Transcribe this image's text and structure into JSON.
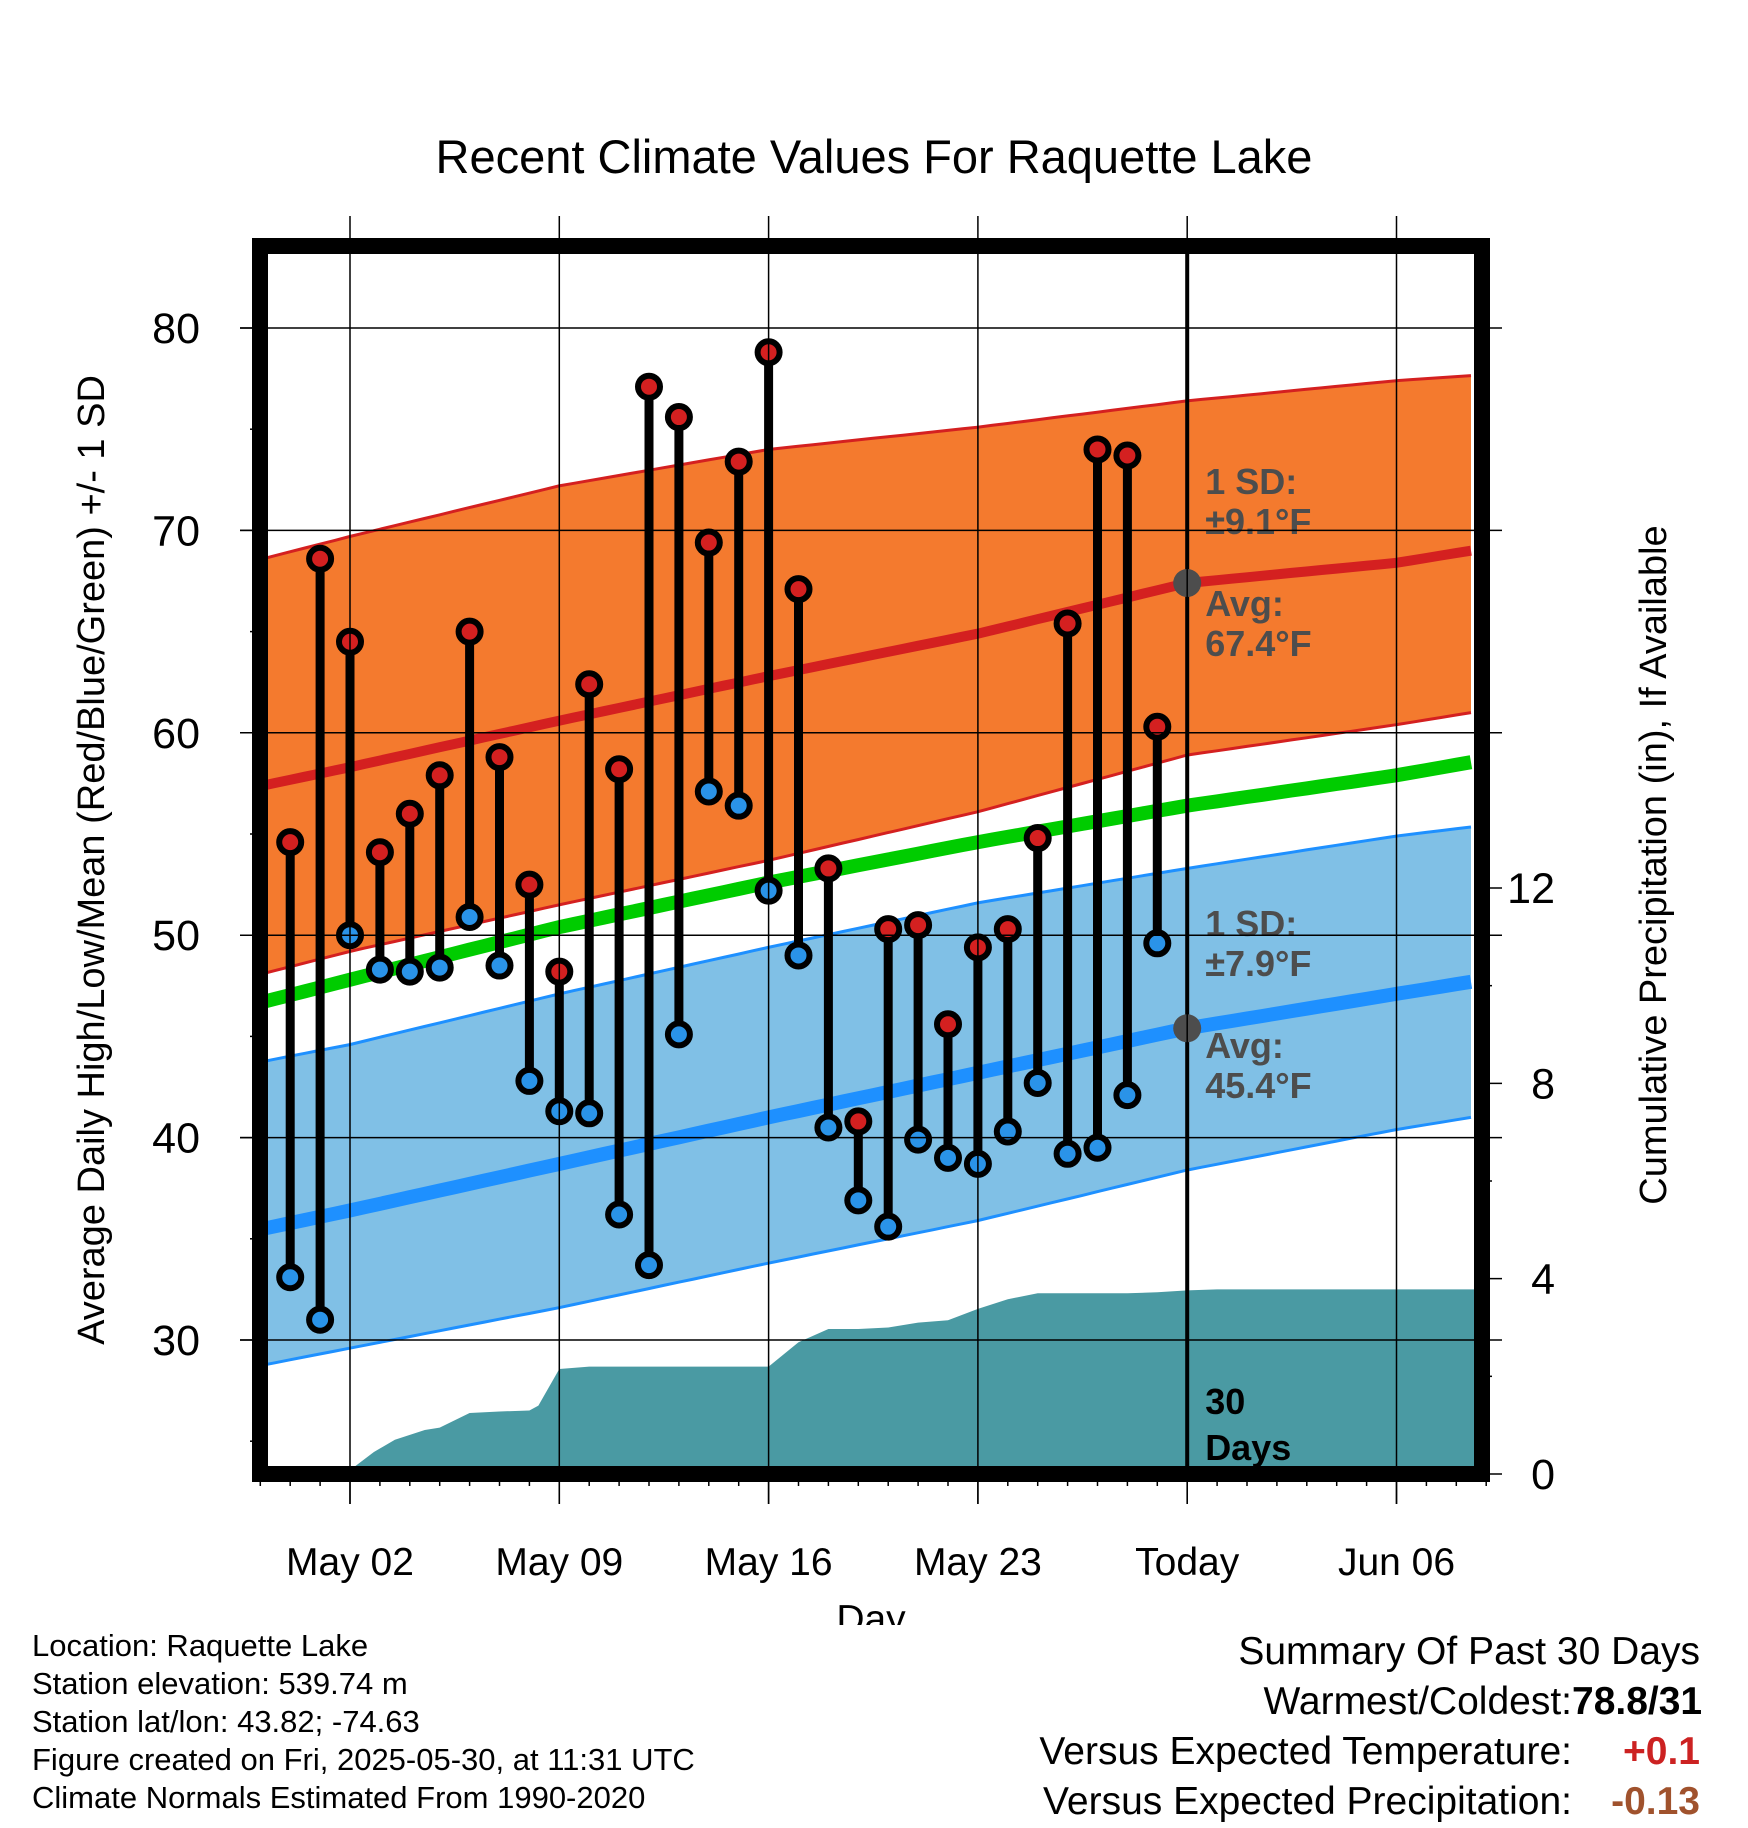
{
  "chart_data": {
    "type": "line",
    "title": "Recent Climate Values For Raquette Lake",
    "xlabel": "Day",
    "ylabel": "Average Daily High/Low/Mean (Red/Blue/Green) +/- 1 SD",
    "y2label": "Cumulative Precipitation (in), If Available",
    "ylim": [
      23,
      84
    ],
    "y2lim": [
      0,
      20.8
    ],
    "xlim": [
      -4.5,
      54.5
    ],
    "x_ticks": [
      {
        "x": 0,
        "label": "May 02"
      },
      {
        "x": 7,
        "label": "May 09"
      },
      {
        "x": 14,
        "label": "May 16"
      },
      {
        "x": 21,
        "label": "May 23"
      },
      {
        "x": 28,
        "label": "Today"
      },
      {
        "x": 35,
        "label": "Jun 06"
      }
    ],
    "y_ticks": [
      30,
      40,
      50,
      60,
      70,
      80
    ],
    "y2_ticks": [
      0,
      4,
      8,
      12
    ],
    "grid": true,
    "today_x": 28,
    "today_label": "30\nDays",
    "normals": {
      "high_avg": [
        [
          -4.5,
          56.9
        ],
        [
          0,
          58.3
        ],
        [
          7,
          60.6
        ],
        [
          14,
          62.8
        ],
        [
          21,
          64.9
        ],
        [
          28,
          67.4
        ],
        [
          35,
          68.4
        ],
        [
          40,
          69.6
        ]
      ],
      "high_upper": [
        [
          -4.5,
          68.0
        ],
        [
          0,
          69.7
        ],
        [
          7,
          72.2
        ],
        [
          14,
          74.0
        ],
        [
          21,
          75.1
        ],
        [
          28,
          76.4
        ],
        [
          35,
          77.4
        ],
        [
          40,
          77.9
        ]
      ],
      "high_lower": [
        [
          -4.5,
          47.5
        ],
        [
          0,
          49.2
        ],
        [
          7,
          51.5
        ],
        [
          14,
          53.7
        ],
        [
          21,
          56.1
        ],
        [
          28,
          58.9
        ],
        [
          35,
          60.4
        ],
        [
          40,
          61.6
        ]
      ],
      "mean": [
        [
          -4.5,
          46.1
        ],
        [
          0,
          47.8
        ],
        [
          7,
          50.4
        ],
        [
          14,
          52.6
        ],
        [
          21,
          54.6
        ],
        [
          28,
          56.4
        ],
        [
          35,
          57.9
        ],
        [
          40,
          59.2
        ]
      ],
      "low_avg": [
        [
          -4.5,
          35.0
        ],
        [
          0,
          36.4
        ],
        [
          7,
          38.7
        ],
        [
          14,
          41.0
        ],
        [
          21,
          43.2
        ],
        [
          28,
          45.4
        ],
        [
          35,
          47.1
        ],
        [
          40,
          48.3
        ]
      ],
      "low_upper": [
        [
          -4.5,
          43.3
        ],
        [
          0,
          44.6
        ],
        [
          7,
          47.1
        ],
        [
          14,
          49.4
        ],
        [
          21,
          51.6
        ],
        [
          28,
          53.3
        ],
        [
          35,
          54.9
        ],
        [
          40,
          55.8
        ]
      ],
      "low_lower": [
        [
          -4.5,
          28.3
        ],
        [
          0,
          29.6
        ],
        [
          7,
          31.6
        ],
        [
          14,
          33.8
        ],
        [
          21,
          35.9
        ],
        [
          28,
          38.4
        ],
        [
          35,
          40.4
        ],
        [
          40,
          41.6
        ]
      ]
    },
    "series": [
      {
        "name": "High",
        "color": "#d42020",
        "x": [
          -2,
          -1,
          0,
          1,
          2,
          3,
          4,
          5,
          6,
          7,
          8,
          9,
          10,
          11,
          12,
          13,
          14,
          15,
          16,
          17,
          18,
          19,
          20,
          21,
          22,
          23,
          24,
          25,
          26,
          27
        ],
        "values": [
          54.6,
          68.6,
          64.5,
          54.1,
          56.0,
          57.9,
          65.0,
          58.8,
          52.5,
          48.2,
          62.4,
          58.2,
          77.1,
          75.6,
          69.4,
          73.4,
          78.8,
          67.1,
          53.3,
          40.8,
          50.3,
          50.5,
          45.6,
          49.4,
          50.3,
          54.8,
          65.4,
          74.0,
          73.7,
          60.3
        ]
      },
      {
        "name": "Low",
        "color": "#2a93e8",
        "x": [
          -2,
          -1,
          0,
          1,
          2,
          3,
          4,
          5,
          6,
          7,
          8,
          9,
          10,
          11,
          12,
          13,
          14,
          15,
          16,
          17,
          18,
          19,
          20,
          21,
          22,
          23,
          24,
          25,
          26,
          27
        ],
        "values": [
          33.1,
          31.0,
          50.0,
          48.3,
          48.2,
          48.4,
          50.9,
          48.5,
          42.8,
          41.3,
          41.2,
          36.2,
          33.7,
          45.1,
          57.1,
          56.4,
          52.2,
          49.0,
          40.5,
          36.9,
          35.6,
          39.9,
          39.0,
          38.7,
          40.3,
          42.7,
          39.2,
          39.5,
          42.1,
          49.6
        ]
      },
      {
        "name": "Precipitation",
        "color": "#4a9aa3",
        "x": [
          -0.3,
          0,
          0.8,
          1.5,
          2.5,
          3,
          4,
          5,
          6,
          6.3,
          7,
          8,
          9,
          10,
          11,
          12,
          13,
          14,
          15,
          16,
          17,
          18,
          19,
          20,
          21,
          22,
          23,
          24,
          25,
          26,
          27,
          28,
          29,
          35,
          38.4
        ],
        "values": [
          0,
          0.08,
          0.45,
          0.7,
          0.9,
          0.95,
          1.25,
          1.28,
          1.3,
          1.4,
          2.15,
          2.2,
          2.2,
          2.2,
          2.2,
          2.2,
          2.2,
          2.2,
          2.7,
          2.97,
          2.97,
          3.0,
          3.1,
          3.15,
          3.38,
          3.58,
          3.7,
          3.7,
          3.7,
          3.7,
          3.72,
          3.76,
          3.78,
          3.78,
          3.78
        ]
      }
    ],
    "annotations": {
      "high_sd_line1": "1 SD:",
      "high_sd_line2": "±9.1°F",
      "high_avg_line1": "Avg:",
      "high_avg_line2": "67.4°F",
      "low_sd_line1": "1 SD:",
      "low_sd_line2": "±7.9°F",
      "low_avg_line1": "Avg:",
      "low_avg_line2": "45.4°F",
      "days_line1": "30",
      "days_line2": "Days"
    },
    "colors": {
      "high_band": "#f47a2e",
      "high_line": "#d42020",
      "mean_line": "#00cc00",
      "low_band": "#80c0e6",
      "low_line": "#1e90ff",
      "precip": "#4a9aa3",
      "annotation": "#4d4d4d"
    }
  },
  "footer": {
    "location": "Location: Raquette Lake",
    "elevation": "Station elevation: 539.74 m",
    "latlon": "Station lat/lon: 43.82; -74.63",
    "created": "Figure created on Fri, 2025-05-30, at 11:31 UTC",
    "normals": "Climate Normals Estimated From 1990-2020"
  },
  "summary": {
    "title": "Summary Of Past 30 Days",
    "warmest_label": "Warmest/Coldest:",
    "warmest_value": "78.8/31",
    "temp_label": "Versus Expected Temperature:",
    "temp_value": "+0.1",
    "temp_color": "#cc2222",
    "precip_label": "Versus Expected Precipitation:",
    "precip_value": "-0.13",
    "precip_color": "#a0522d"
  }
}
